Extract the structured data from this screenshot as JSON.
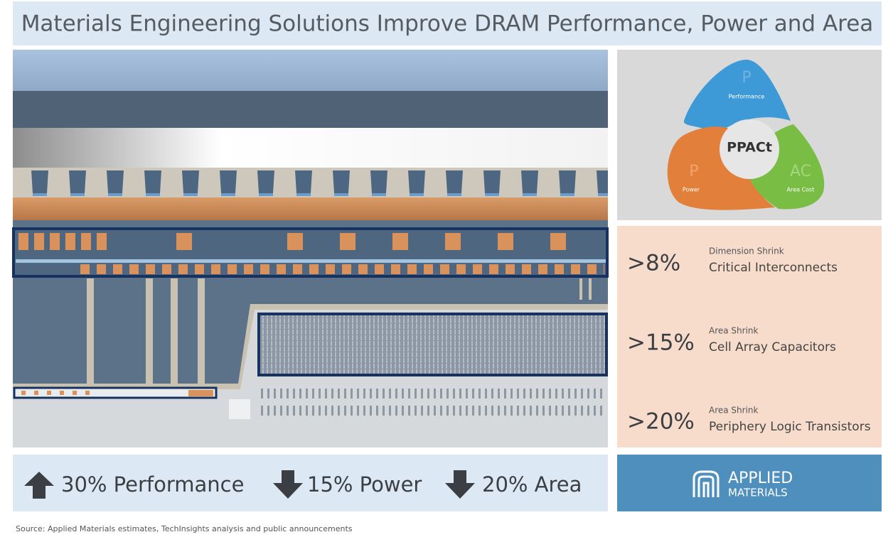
{
  "header": {
    "title": "Materials Engineering Solutions Improve DRAM Performance, Power and Area"
  },
  "ppact": {
    "center": "PPACt",
    "performance": {
      "letter": "P",
      "label": "Performance"
    },
    "power": {
      "letter": "P",
      "label": "Power"
    },
    "area_cost": {
      "letter": "AC",
      "label": "Area Cost"
    }
  },
  "stats": [
    {
      "value": ">8%",
      "caption": "Dimension Shrink",
      "label": "Critical Interconnects"
    },
    {
      "value": ">15%",
      "caption": "Area Shrink",
      "label": "Cell Array Capacitors"
    },
    {
      "value": ">20%",
      "caption": "Area Shrink",
      "label": "Periphery Logic Transistors"
    }
  ],
  "summary": [
    "30% Performance",
    "15% Power",
    "20% Area"
  ],
  "logo": {
    "line1": "APPLIED",
    "line2": "MATERIALS"
  },
  "footer": {
    "source": "Source: Applied Materials estimates, TechInsights analysis and public announcements"
  }
}
